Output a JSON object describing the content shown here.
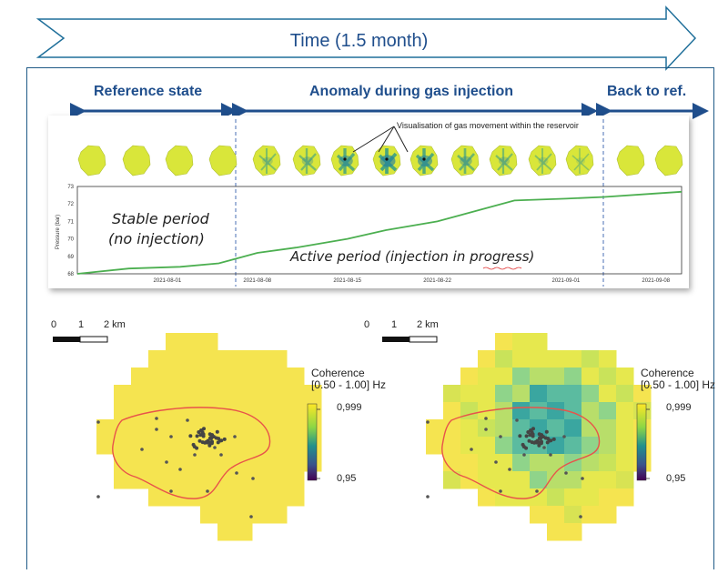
{
  "header": {
    "time_label": "Time (1.5 month)"
  },
  "phases": [
    {
      "label": "Reference state"
    },
    {
      "label": "Anomaly during gas injection"
    },
    {
      "label": "Back to ref."
    }
  ],
  "timeline": {
    "annotation": "Visualisation of gas movement within the reservoir",
    "stable_line1": "Stable period",
    "stable_line2": "(no injection)",
    "active_label": "Active period (injection in progress)"
  },
  "chart_data": {
    "type": "line",
    "ylabel": "Pressure (bar)",
    "ylim": [
      68,
      73
    ],
    "yticks": [
      "73",
      "72",
      "71",
      "70",
      "69",
      "68"
    ],
    "xticks": [
      "2021-08-01",
      "2021-08-08",
      "2021-08-15",
      "2021-08-22",
      "2021-09-01",
      "2021-09-08"
    ],
    "series": [
      {
        "x": [
          "2021-07-25",
          "2021-07-29",
          "2021-08-02",
          "2021-08-05",
          "2021-08-08",
          "2021-08-11",
          "2021-08-15",
          "2021-08-18",
          "2021-08-22",
          "2021-08-25",
          "2021-08-28",
          "2021-09-01",
          "2021-09-04",
          "2021-09-08",
          "2021-09-10"
        ],
        "values": [
          68.0,
          68.3,
          68.4,
          68.6,
          69.2,
          69.5,
          70.0,
          70.5,
          71.0,
          71.6,
          72.2,
          72.3,
          72.4,
          72.6,
          72.7
        ]
      }
    ]
  },
  "maps": [
    {
      "scale": {
        "zero": "0",
        "one": "1",
        "two": "2 km"
      },
      "legend_title1": "Coherence",
      "legend_title2": "[0.50 - 1.00] Hz",
      "max": "0,999",
      "min": "0,95"
    },
    {
      "scale": {
        "zero": "0",
        "one": "1",
        "two": "2 km"
      },
      "legend_title1": "Coherence",
      "legend_title2": "[0.50 - 1.00] Hz",
      "max": "0,999",
      "min": "0,95"
    }
  ],
  "colors": {
    "accent": "#1f4e8c",
    "line": "#4caf50",
    "outline": "#e8534a",
    "map_yellow": "#f5e450"
  }
}
